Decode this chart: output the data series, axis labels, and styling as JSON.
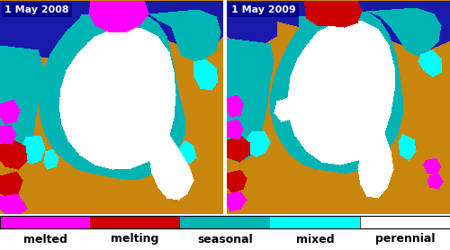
{
  "title_left": "1 May 2008",
  "title_right": "1 May 2009",
  "legend_items": [
    {
      "label": "melted",
      "color": [
        255,
        0,
        255
      ]
    },
    {
      "label": "melting",
      "color": [
        204,
        0,
        0
      ]
    },
    {
      "label": "seasonal",
      "color": [
        0,
        180,
        180
      ]
    },
    {
      "label": "mixed",
      "color": [
        0,
        255,
        255
      ]
    },
    {
      "label": "perennial",
      "color": [
        255,
        255,
        255
      ]
    }
  ],
  "bg_color": [
    200,
    134,
    10
  ],
  "ocean_color": [
    26,
    26,
    170
  ],
  "perennial_color": [
    255,
    255,
    255
  ],
  "seasonal_color": [
    0,
    180,
    180
  ],
  "mixed_color": [
    0,
    255,
    255
  ],
  "melting_color": [
    204,
    0,
    0
  ],
  "melted_color": [
    255,
    0,
    255
  ],
  "title_bg": [
    0,
    0,
    139
  ],
  "title_text_color": "#ffffff",
  "label_fontsize": 9,
  "title_fontsize": 8,
  "figsize": [
    5.0,
    2.78
  ],
  "dpi": 100
}
